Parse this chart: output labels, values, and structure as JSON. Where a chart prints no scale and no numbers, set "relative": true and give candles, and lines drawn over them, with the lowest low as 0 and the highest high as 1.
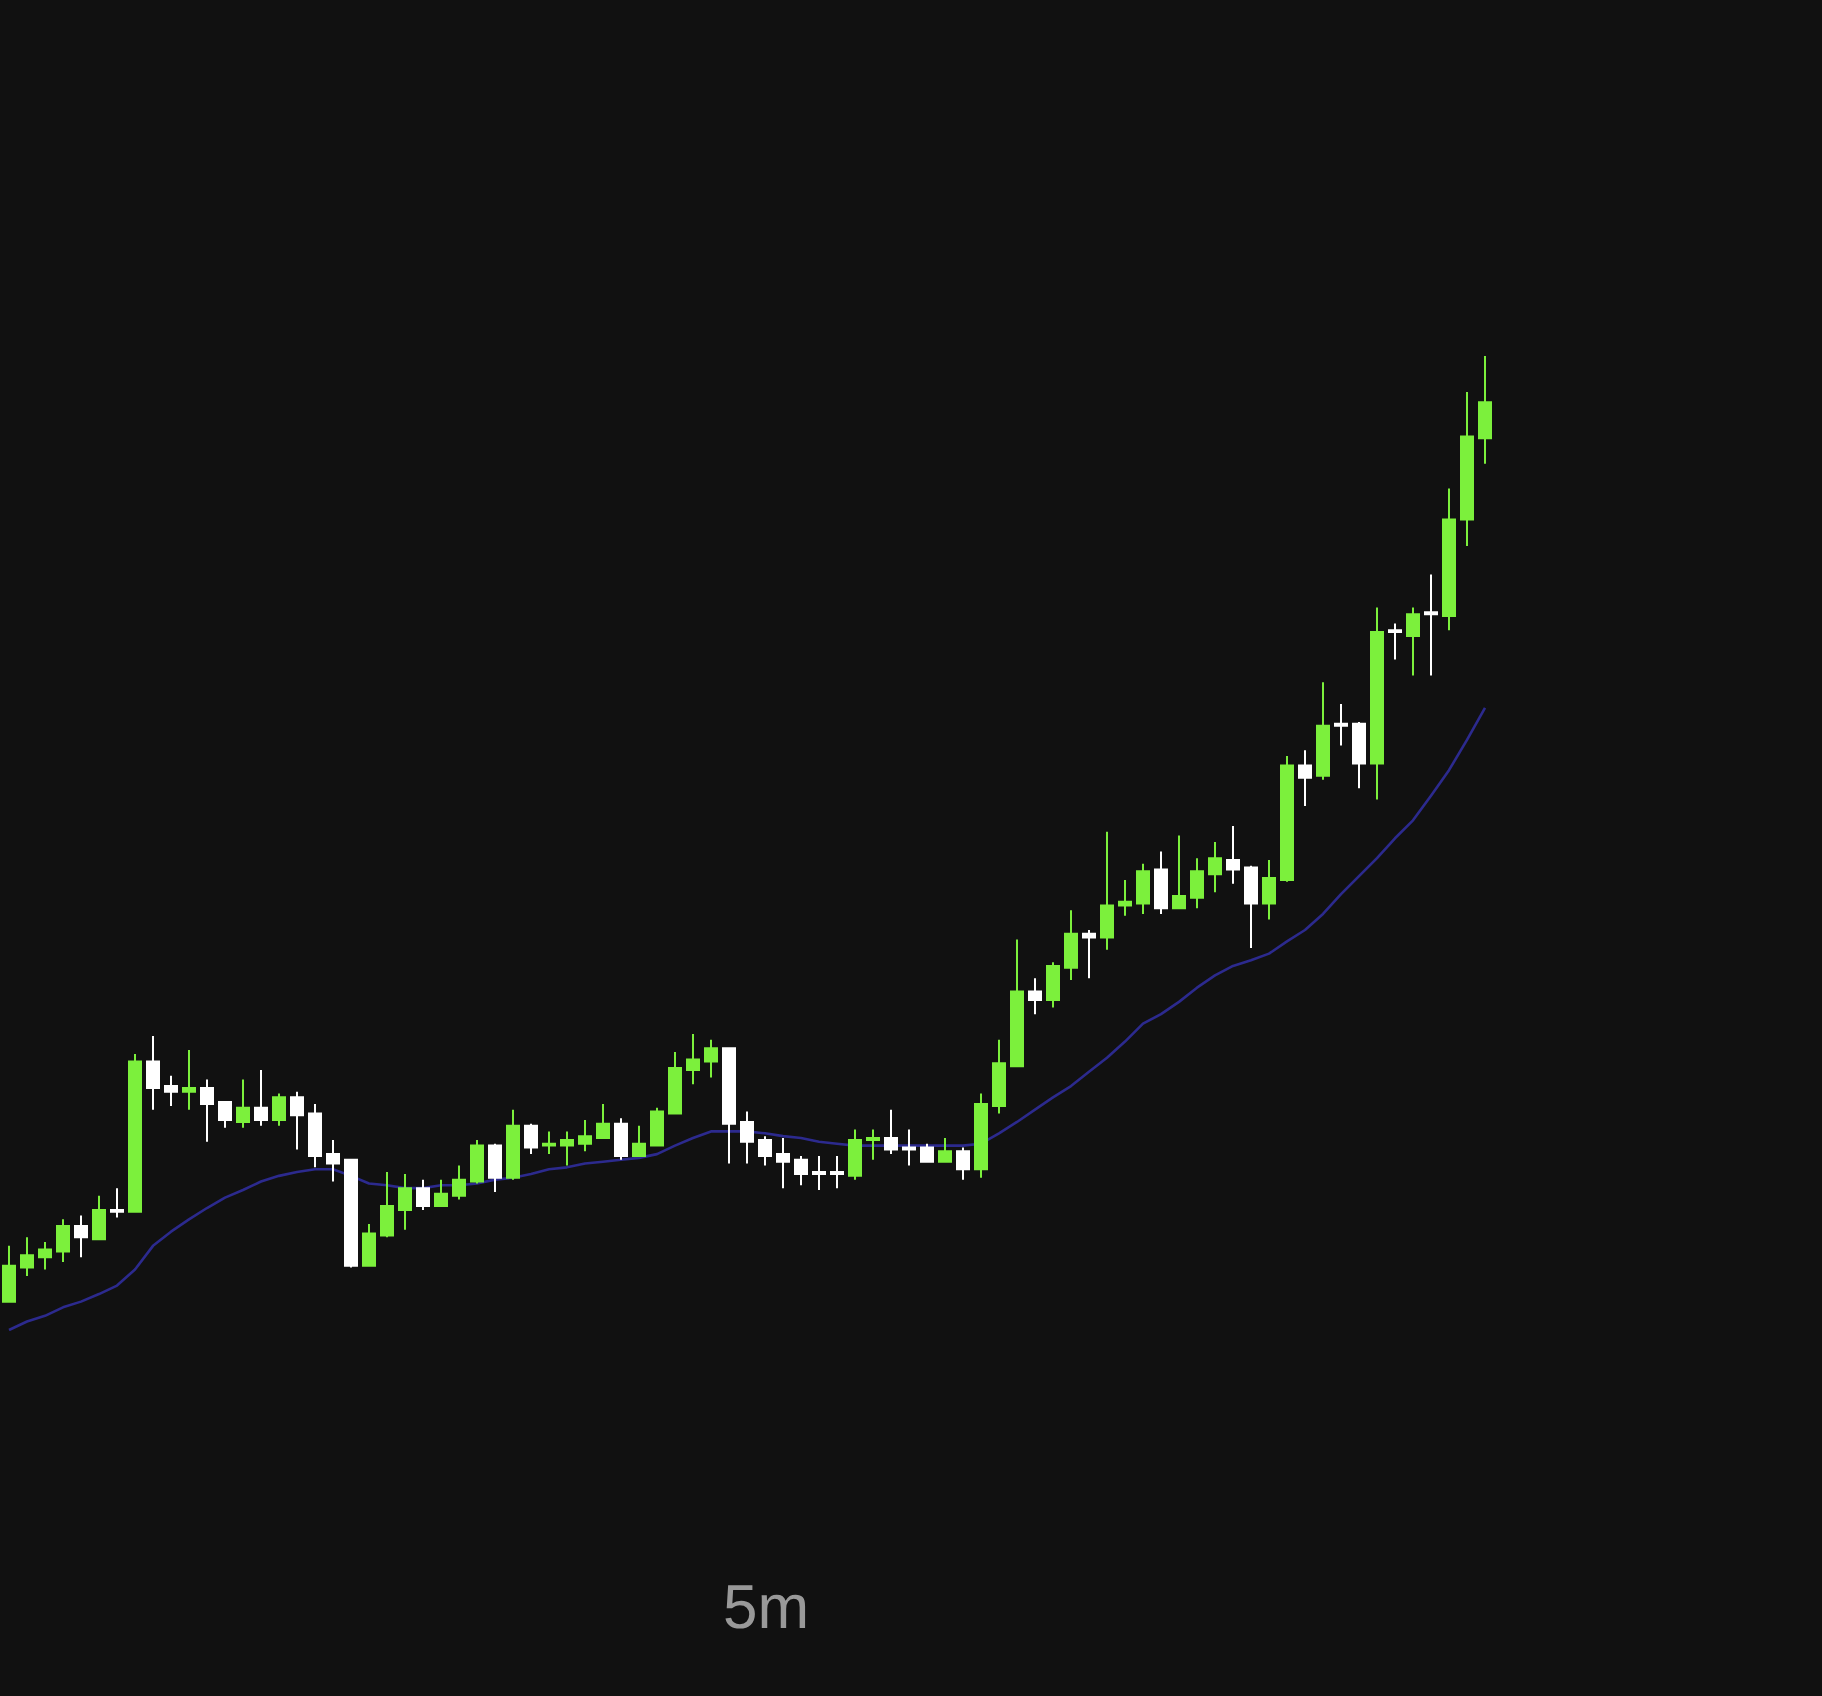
{
  "chart_data": {
    "type": "candlestick",
    "title": "5m",
    "relative": true,
    "grid": false,
    "categories": [
      null,
      null,
      null,
      null,
      null,
      null,
      null,
      null,
      null,
      null,
      null,
      null,
      null,
      null,
      null,
      null,
      null,
      null,
      null,
      null,
      null,
      null,
      null,
      null,
      null,
      null,
      null,
      null,
      null,
      null,
      null,
      null,
      null,
      null,
      null,
      null,
      null,
      null,
      null,
      null,
      null,
      null,
      null,
      null,
      null,
      null,
      null,
      null,
      null,
      null,
      null,
      null,
      null,
      null,
      null,
      null,
      null,
      null,
      null,
      null,
      null,
      null,
      null,
      null,
      null,
      null,
      null,
      null,
      null,
      null,
      null,
      null,
      null,
      null,
      null,
      null,
      null,
      null,
      null,
      null,
      null,
      null,
      null
    ],
    "colors": [
      "#7cf03c",
      "#7cf03c",
      "#7cf03c",
      "#7cf03c",
      "#ffffff",
      "#7cf03c",
      "#ffffff",
      "#7cf03c",
      "#ffffff",
      "#ffffff",
      "#7cf03c",
      "#ffffff",
      "#ffffff",
      "#7cf03c",
      "#ffffff",
      "#7cf03c",
      "#ffffff",
      "#ffffff",
      "#ffffff",
      "#ffffff",
      "#7cf03c",
      "#7cf03c",
      "#7cf03c",
      "#ffffff",
      "#7cf03c",
      "#7cf03c",
      "#7cf03c",
      "#ffffff",
      "#7cf03c",
      "#ffffff",
      "#7cf03c",
      "#7cf03c",
      "#7cf03c",
      "#7cf03c",
      "#ffffff",
      "#7cf03c",
      "#7cf03c",
      "#7cf03c",
      "#7cf03c",
      "#7cf03c",
      "#ffffff",
      "#ffffff",
      "#ffffff",
      "#ffffff",
      "#ffffff",
      "#ffffff",
      "#ffffff",
      "#7cf03c",
      "#7cf03c",
      "#ffffff",
      "#ffffff",
      "#ffffff",
      "#7cf03c",
      "#ffffff",
      "#7cf03c",
      "#7cf03c",
      "#7cf03c",
      "#ffffff",
      "#7cf03c",
      "#7cf03c",
      "#ffffff",
      "#7cf03c",
      "#7cf03c",
      "#7cf03c",
      "#ffffff",
      "#7cf03c",
      "#7cf03c",
      "#7cf03c",
      "#ffffff",
      "#ffffff",
      "#7cf03c",
      "#7cf03c",
      "#ffffff",
      "#7cf03c",
      "#ffffff",
      "#ffffff",
      "#7cf03c",
      "#ffffff",
      "#7cf03c",
      "#ffffff",
      "#7cf03c",
      "#7cf03c",
      "#7cf03c"
    ],
    "ohlc": [
      [
        0,
        0.059,
        0,
        0.038
      ],
      [
        0.036,
        0.068,
        0.027,
        0.049
      ],
      [
        0.047,
        0.063,
        0.034,
        0.055
      ],
      [
        0.053,
        0.087,
        0.042,
        0.08
      ],
      [
        0.08,
        0.091,
        0.047,
        0.068
      ],
      [
        0.066,
        0.112,
        0.066,
        0.097
      ],
      [
        0.097,
        0.12,
        0.089,
        0.095
      ],
      [
        0.095,
        0.262,
        0.095,
        0.254
      ],
      [
        0.254,
        0.281,
        0.203,
        0.226
      ],
      [
        0.228,
        0.239,
        0.207,
        0.222
      ],
      [
        0.222,
        0.266,
        0.203,
        0.226
      ],
      [
        0.226,
        0.235,
        0.169,
        0.209
      ],
      [
        0.211,
        0.211,
        0.184,
        0.192
      ],
      [
        0.19,
        0.235,
        0.184,
        0.205
      ],
      [
        0.205,
        0.245,
        0.186,
        0.192
      ],
      [
        0.192,
        0.22,
        0.186,
        0.216
      ],
      [
        0.216,
        0.222,
        0.161,
        0.197
      ],
      [
        0.199,
        0.209,
        0.142,
        0.154
      ],
      [
        0.156,
        0.171,
        0.127,
        0.146
      ],
      [
        0.15,
        0.15,
        0.036,
        0.038
      ],
      [
        0.038,
        0.082,
        0.038,
        0.072
      ],
      [
        0.07,
        0.137,
        0.068,
        0.101
      ],
      [
        0.097,
        0.135,
        0.076,
        0.12
      ],
      [
        0.12,
        0.129,
        0.097,
        0.101
      ],
      [
        0.101,
        0.129,
        0.101,
        0.114
      ],
      [
        0.112,
        0.144,
        0.108,
        0.129
      ],
      [
        0.127,
        0.171,
        0.125,
        0.165
      ],
      [
        0.165,
        0.167,
        0.116,
        0.131
      ],
      [
        0.131,
        0.203,
        0.129,
        0.186
      ],
      [
        0.186,
        0.188,
        0.156,
        0.163
      ],
      [
        0.165,
        0.18,
        0.156,
        0.167
      ],
      [
        0.165,
        0.18,
        0.144,
        0.171
      ],
      [
        0.167,
        0.192,
        0.159,
        0.175
      ],
      [
        0.173,
        0.209,
        0.173,
        0.188
      ],
      [
        0.188,
        0.194,
        0.15,
        0.154
      ],
      [
        0.154,
        0.186,
        0.154,
        0.167
      ],
      [
        0.165,
        0.205,
        0.165,
        0.201
      ],
      [
        0.199,
        0.264,
        0.199,
        0.247
      ],
      [
        0.245,
        0.283,
        0.23,
        0.256
      ],
      [
        0.254,
        0.277,
        0.237,
        0.268
      ],
      [
        0.268,
        0.268,
        0.146,
        0.188
      ],
      [
        0.19,
        0.201,
        0.146,
        0.169
      ],
      [
        0.171,
        0.175,
        0.144,
        0.154
      ],
      [
        0.156,
        0.173,
        0.12,
        0.148
      ],
      [
        0.15,
        0.154,
        0.123,
        0.135
      ],
      [
        0.137,
        0.154,
        0.118,
        0.135
      ],
      [
        0.137,
        0.154,
        0.12,
        0.135
      ],
      [
        0.133,
        0.182,
        0.129,
        0.171
      ],
      [
        0.171,
        0.182,
        0.15,
        0.173
      ],
      [
        0.173,
        0.203,
        0.156,
        0.161
      ],
      [
        0.163,
        0.182,
        0.144,
        0.161
      ],
      [
        0.163,
        0.167,
        0.148,
        0.148
      ],
      [
        0.148,
        0.173,
        0.148,
        0.159
      ],
      [
        0.159,
        0.163,
        0.129,
        0.14
      ],
      [
        0.14,
        0.22,
        0.131,
        0.209
      ],
      [
        0.207,
        0.277,
        0.199,
        0.252
      ],
      [
        0.249,
        0.383,
        0.249,
        0.328
      ],
      [
        0.328,
        0.342,
        0.304,
        0.319
      ],
      [
        0.319,
        0.359,
        0.311,
        0.355
      ],
      [
        0.353,
        0.414,
        0.34,
        0.389
      ],
      [
        0.389,
        0.393,
        0.342,
        0.385
      ],
      [
        0.385,
        0.497,
        0.372,
        0.419
      ],
      [
        0.419,
        0.446,
        0.408,
        0.423
      ],
      [
        0.421,
        0.463,
        0.41,
        0.455
      ],
      [
        0.457,
        0.476,
        0.41,
        0.416
      ],
      [
        0.416,
        0.493,
        0.416,
        0.429
      ],
      [
        0.427,
        0.469,
        0.416,
        0.455
      ],
      [
        0.452,
        0.486,
        0.433,
        0.469
      ],
      [
        0.467,
        0.503,
        0.442,
        0.457
      ],
      [
        0.459,
        0.461,
        0.374,
        0.421
      ],
      [
        0.421,
        0.467,
        0.404,
        0.448
      ],
      [
        0.446,
        0.577,
        0.444,
        0.567
      ],
      [
        0.567,
        0.583,
        0.524,
        0.554
      ],
      [
        0.556,
        0.655,
        0.552,
        0.609
      ],
      [
        0.611,
        0.632,
        0.588,
        0.609
      ],
      [
        0.611,
        0.613,
        0.543,
        0.569
      ],
      [
        0.569,
        0.734,
        0.531,
        0.708
      ],
      [
        0.71,
        0.717,
        0.679,
        0.708
      ],
      [
        0.704,
        0.734,
        0.662,
        0.727
      ],
      [
        0.729,
        0.769,
        0.662,
        0.727
      ],
      [
        0.725,
        0.86,
        0.71,
        0.827
      ],
      [
        0.827,
        0.962,
        0.799,
        0.915
      ],
      [
        0.913,
        1,
        0.886,
        0.951
      ]
    ],
    "series": [
      {
        "type": "line",
        "color": "#2c2a8e",
        "line_style": "solid",
        "values": [
          -0.03,
          -0.021,
          -0.015,
          -0.006,
          0,
          0.008,
          0.017,
          0.034,
          0.059,
          0.074,
          0.087,
          0.099,
          0.11,
          0.118,
          0.127,
          0.133,
          0.137,
          0.14,
          0.14,
          0.133,
          0.125,
          0.123,
          0.12,
          0.12,
          0.123,
          0.123,
          0.125,
          0.129,
          0.131,
          0.135,
          0.14,
          0.142,
          0.146,
          0.148,
          0.15,
          0.152,
          0.156,
          0.165,
          0.173,
          0.18,
          0.18,
          0.18,
          0.178,
          0.175,
          0.173,
          0.169,
          0.167,
          0.165,
          0.165,
          0.165,
          0.165,
          0.165,
          0.165,
          0.165,
          0.167,
          0.178,
          0.19,
          0.203,
          0.216,
          0.228,
          0.243,
          0.258,
          0.275,
          0.294,
          0.304,
          0.317,
          0.332,
          0.345,
          0.355,
          0.361,
          0.368,
          0.381,
          0.393,
          0.41,
          0.431,
          0.45,
          0.469,
          0.49,
          0.509,
          0.535,
          0.562,
          0.594,
          0.628
        ]
      }
    ]
  }
}
